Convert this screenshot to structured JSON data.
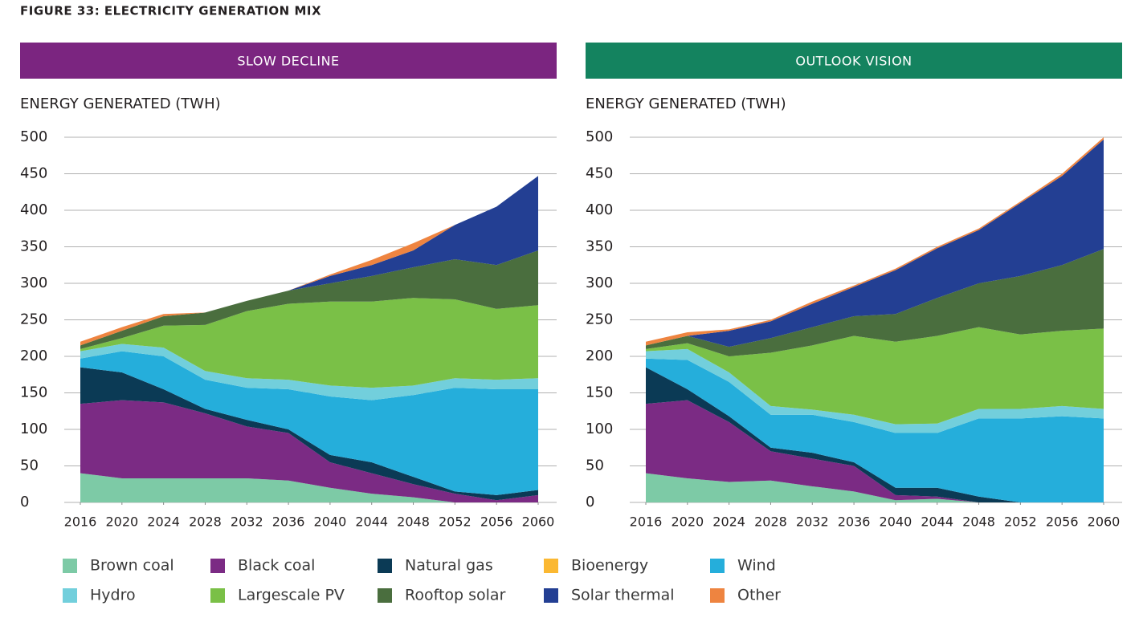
{
  "header": {
    "title": "FIGURE 33: ELECTRICITY GENERATION MIX"
  },
  "chart_data": [
    {
      "type": "area",
      "stacked": true,
      "title": "SLOW DECLINE",
      "header_color": "#7b2580",
      "y_label": "ENERGY GENERATED (TWH)",
      "x": [
        2016,
        2020,
        2024,
        2028,
        2032,
        2036,
        2040,
        2044,
        2048,
        2052,
        2056,
        2060
      ],
      "xlim": [
        2016,
        2060
      ],
      "xticks": [
        2016,
        2020,
        2024,
        2028,
        2032,
        2036,
        2040,
        2044,
        2048,
        2052,
        2056,
        2060
      ],
      "ylim": [
        0,
        500
      ],
      "yticks": [
        0,
        50,
        100,
        150,
        200,
        250,
        300,
        350,
        400,
        450,
        500
      ],
      "grid": true,
      "series": [
        {
          "name": "Brown coal",
          "color": "#7dcaa6",
          "values": [
            40,
            33,
            33,
            33,
            33,
            30,
            20,
            12,
            7,
            0,
            0,
            0
          ]
        },
        {
          "name": "Black coal",
          "color": "#7b2b84",
          "values": [
            95,
            107,
            104,
            89,
            71,
            65,
            35,
            28,
            18,
            12,
            3,
            10
          ]
        },
        {
          "name": "Natural gas",
          "color": "#0b3a55",
          "values": [
            50,
            38,
            18,
            6,
            9,
            5,
            10,
            15,
            10,
            3,
            7,
            7
          ]
        },
        {
          "name": "Bioenergy",
          "color": "#fbb832",
          "values": [
            0,
            0,
            0,
            0,
            0,
            0,
            0,
            0,
            0,
            0,
            0,
            0
          ]
        },
        {
          "name": "Wind",
          "color": "#25aedb",
          "values": [
            12,
            29,
            45,
            40,
            44,
            55,
            80,
            85,
            112,
            142,
            145,
            138
          ]
        },
        {
          "name": "Hydro",
          "color": "#72cfdc",
          "values": [
            10,
            10,
            12,
            12,
            13,
            13,
            15,
            17,
            13,
            13,
            13,
            15
          ]
        },
        {
          "name": "Largescale PV",
          "color": "#7ac047",
          "values": [
            3,
            8,
            30,
            63,
            92,
            104,
            115,
            118,
            120,
            108,
            97,
            100
          ]
        },
        {
          "name": "Rooftop solar",
          "color": "#4a6e3e",
          "values": [
            5,
            10,
            13,
            17,
            14,
            18,
            25,
            35,
            42,
            55,
            60,
            75
          ]
        },
        {
          "name": "Solar thermal",
          "color": "#233f93",
          "values": [
            0,
            0,
            0,
            0,
            0,
            0,
            10,
            15,
            23,
            47,
            80,
            102
          ]
        },
        {
          "name": "Other",
          "color": "#ee8440",
          "values": [
            5,
            5,
            3,
            0,
            0,
            0,
            2,
            7,
            10,
            0,
            0,
            0
          ]
        }
      ]
    },
    {
      "type": "area",
      "stacked": true,
      "title": "OUTLOOK VISION",
      "header_color": "#14835f",
      "y_label": "ENERGY GENERATED (TWH)",
      "x": [
        2016,
        2020,
        2024,
        2028,
        2032,
        2036,
        2040,
        2044,
        2048,
        2052,
        2056,
        2060
      ],
      "xlim": [
        2016,
        2060
      ],
      "xticks": [
        2016,
        2020,
        2024,
        2028,
        2032,
        2036,
        2040,
        2044,
        2048,
        2052,
        2056,
        2060
      ],
      "ylim": [
        0,
        500
      ],
      "yticks": [
        0,
        50,
        100,
        150,
        200,
        250,
        300,
        350,
        400,
        450,
        500
      ],
      "grid": true,
      "series": [
        {
          "name": "Brown coal",
          "color": "#7dcaa6",
          "values": [
            40,
            33,
            28,
            30,
            22,
            15,
            3,
            5,
            0,
            0,
            0,
            0
          ]
        },
        {
          "name": "Black coal",
          "color": "#7b2b84",
          "values": [
            95,
            107,
            82,
            40,
            38,
            35,
            7,
            3,
            0,
            0,
            0,
            0
          ]
        },
        {
          "name": "Natural gas",
          "color": "#0b3a55",
          "values": [
            50,
            15,
            8,
            5,
            8,
            5,
            10,
            12,
            8,
            0,
            0,
            0
          ]
        },
        {
          "name": "Bioenergy",
          "color": "#fbb832",
          "values": [
            0,
            0,
            0,
            0,
            0,
            0,
            0,
            0,
            0,
            0,
            0,
            0
          ]
        },
        {
          "name": "Wind",
          "color": "#25aedb",
          "values": [
            12,
            40,
            47,
            45,
            52,
            55,
            75,
            75,
            107,
            115,
            118,
            115
          ]
        },
        {
          "name": "Hydro",
          "color": "#72cfdc",
          "values": [
            10,
            15,
            13,
            12,
            7,
            10,
            12,
            13,
            13,
            13,
            14,
            13
          ]
        },
        {
          "name": "Largescale PV",
          "color": "#7ac047",
          "values": [
            3,
            8,
            22,
            73,
            88,
            108,
            113,
            120,
            112,
            102,
            103,
            110
          ]
        },
        {
          "name": "Rooftop solar",
          "color": "#4a6e3e",
          "values": [
            5,
            10,
            13,
            20,
            25,
            27,
            38,
            52,
            60,
            80,
            90,
            109
          ]
        },
        {
          "name": "Solar thermal",
          "color": "#233f93",
          "values": [
            0,
            0,
            22,
            23,
            32,
            40,
            60,
            68,
            73,
            100,
            122,
            150
          ]
        },
        {
          "name": "Other",
          "color": "#ee8440",
          "values": [
            5,
            5,
            2,
            2,
            3,
            2,
            2,
            2,
            2,
            2,
            3,
            3
          ]
        }
      ]
    }
  ]
}
